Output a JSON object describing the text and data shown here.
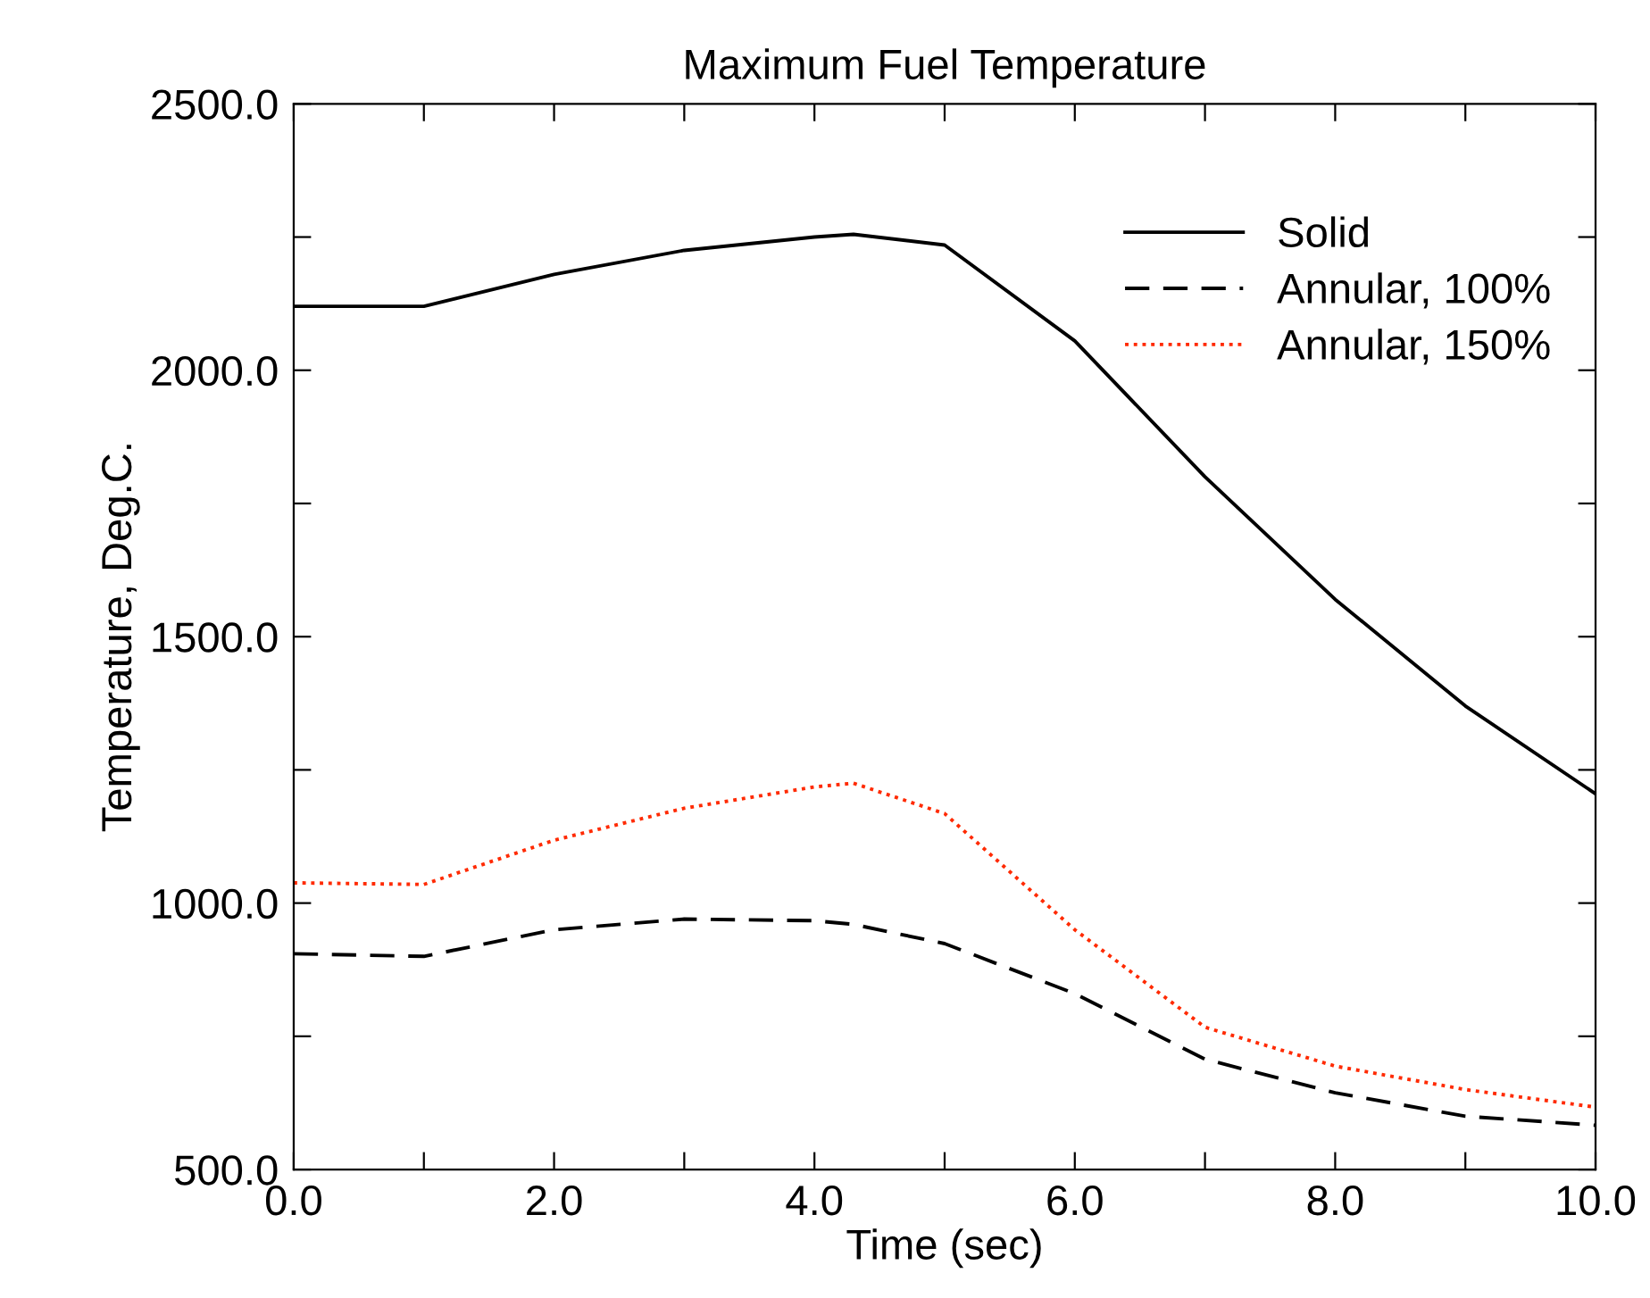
{
  "chart_data": {
    "type": "line",
    "title": "Maximum Fuel Temperature",
    "xlabel": "Time (sec)",
    "ylabel": "Temperature, Deg.C.",
    "x": [
      0,
      1,
      2,
      3,
      4,
      4.3,
      5,
      6,
      7,
      8,
      9,
      10
    ],
    "series": [
      {
        "name": "Solid",
        "color": "#000000",
        "line_style": "solid",
        "values": [
          2120,
          2120,
          2180,
          2225,
          2250,
          2255,
          2235,
          2055,
          1800,
          1570,
          1370,
          1205
        ]
      },
      {
        "name": "Annular, 100%",
        "color": "#000000",
        "line_style": "dashed",
        "values": [
          905,
          900,
          950,
          970,
          967,
          960,
          924,
          830,
          707,
          644,
          600,
          583
        ]
      },
      {
        "name": "Annular, 150%",
        "color": "#ff2a00",
        "line_style": "dotted",
        "values": [
          1038,
          1035,
          1118,
          1178,
          1218,
          1225,
          1168,
          950,
          767,
          694,
          650,
          617
        ]
      }
    ],
    "xlim": [
      0,
      10
    ],
    "ylim": [
      500,
      2500
    ],
    "xticks": [
      {
        "value": 0,
        "label": "0.0"
      },
      {
        "value": 1,
        "label": null
      },
      {
        "value": 2,
        "label": "2.0"
      },
      {
        "value": 3,
        "label": null
      },
      {
        "value": 4,
        "label": "4.0"
      },
      {
        "value": 5,
        "label": null
      },
      {
        "value": 6,
        "label": "6.0"
      },
      {
        "value": 7,
        "label": null
      },
      {
        "value": 8,
        "label": "8.0"
      },
      {
        "value": 9,
        "label": null
      },
      {
        "value": 10,
        "label": "10.0"
      }
    ],
    "yticks": [
      {
        "value": 500,
        "label": "500.0"
      },
      {
        "value": 750,
        "label": null
      },
      {
        "value": 1000,
        "label": "1000.0"
      },
      {
        "value": 1250,
        "label": null
      },
      {
        "value": 1500,
        "label": "1500.0"
      },
      {
        "value": 1750,
        "label": null
      },
      {
        "value": 2000,
        "label": "2000.0"
      },
      {
        "value": 2250,
        "label": null
      },
      {
        "value": 2500,
        "label": "2500.0"
      }
    ],
    "legend": "top right",
    "grid": false,
    "marker": "none"
  }
}
